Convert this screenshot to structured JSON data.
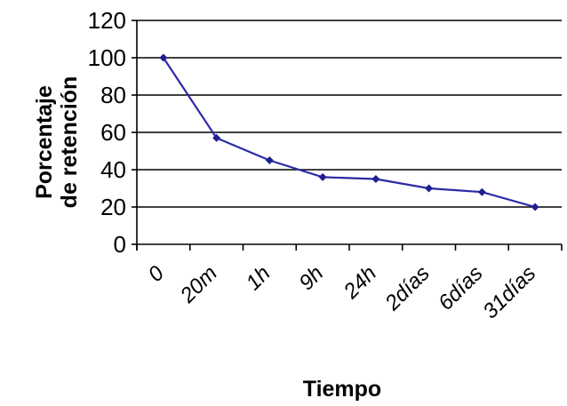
{
  "chart_data": {
    "type": "line",
    "categories": [
      "0",
      "20m",
      "1h",
      "9h",
      "24h",
      "2días",
      "6días",
      "31días"
    ],
    "series": [
      {
        "values": [
          100,
          57,
          45,
          36,
          35,
          30,
          28,
          20
        ]
      }
    ],
    "xlabel": "Tiempo",
    "ylabel": [
      "Porcentaje",
      "de retención"
    ],
    "ylim": [
      0,
      120
    ],
    "yticks": [
      0,
      20,
      40,
      60,
      80,
      100,
      120
    ],
    "grid": "horizontal",
    "legend": "none",
    "line_color": "#2b2ba6",
    "marker_color": "#1f1f8f",
    "grid_color": "#000000"
  }
}
